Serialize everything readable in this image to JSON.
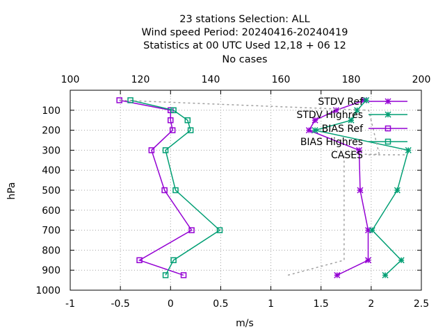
{
  "chart_data": {
    "type": "line",
    "title_lines": [
      "23 stations Selection: ALL",
      "Wind speed  Period: 20240416-20240419",
      "Statistics at 00 UTC  Used  12,18 + 06 12",
      "No cases"
    ],
    "xlabel": "m/s",
    "ylabel": "hPa",
    "xlim": [
      -1,
      2.5
    ],
    "ylim": [
      1000,
      0
    ],
    "x2lim": [
      100,
      200
    ],
    "xticks": [
      "-1",
      "-0.5",
      "0",
      "0.5",
      "1",
      "1.5",
      "2",
      "2.5"
    ],
    "x2ticks": [
      "100",
      "120",
      "140",
      "160",
      "180",
      "200"
    ],
    "yticks": [
      "1000",
      "900",
      "800",
      "700",
      "600",
      "500",
      "400",
      "300",
      "200",
      "100"
    ],
    "grid": true,
    "legend_position": "top-right",
    "series": [
      {
        "name": "STDV Ref",
        "color": "#9400d3",
        "marker": "x",
        "points": [
          [
            1.66,
            925
          ],
          [
            1.97,
            850
          ],
          [
            1.97,
            700
          ],
          [
            1.89,
            500
          ],
          [
            1.88,
            300
          ],
          [
            1.38,
            200
          ],
          [
            1.44,
            150
          ],
          [
            1.65,
            100
          ],
          [
            1.93,
            50
          ]
        ]
      },
      {
        "name": "STDV Highres",
        "color": "#009e73",
        "marker": "x",
        "points": [
          [
            2.14,
            925
          ],
          [
            2.3,
            850
          ],
          [
            2.01,
            700
          ],
          [
            2.26,
            500
          ],
          [
            2.37,
            300
          ],
          [
            1.44,
            200
          ],
          [
            1.8,
            150
          ],
          [
            1.86,
            100
          ],
          [
            1.95,
            50
          ]
        ]
      },
      {
        "name": "BIAS Ref",
        "color": "#9400d3",
        "marker": "square",
        "points": [
          [
            0.13,
            925
          ],
          [
            -0.31,
            850
          ],
          [
            0.21,
            700
          ],
          [
            -0.06,
            500
          ],
          [
            -0.19,
            300
          ],
          [
            0.02,
            200
          ],
          [
            0.0,
            150
          ],
          [
            0.0,
            100
          ],
          [
            -0.51,
            50
          ]
        ]
      },
      {
        "name": "BIAS Highres",
        "color": "#009e73",
        "marker": "square",
        "points": [
          [
            -0.05,
            925
          ],
          [
            0.03,
            850
          ],
          [
            0.49,
            700
          ],
          [
            0.05,
            500
          ],
          [
            -0.05,
            300
          ],
          [
            0.2,
            200
          ],
          [
            0.17,
            150
          ],
          [
            0.03,
            100
          ],
          [
            -0.4,
            50
          ]
        ]
      },
      {
        "name": "CASES",
        "color": "#a0a0a0",
        "dashed": true,
        "axis": "x2",
        "points": [
          [
            162,
            925
          ],
          [
            178,
            850
          ],
          [
            178,
            320
          ],
          [
            188,
            320
          ],
          [
            185,
            100
          ],
          [
            114,
            50
          ]
        ]
      }
    ]
  }
}
